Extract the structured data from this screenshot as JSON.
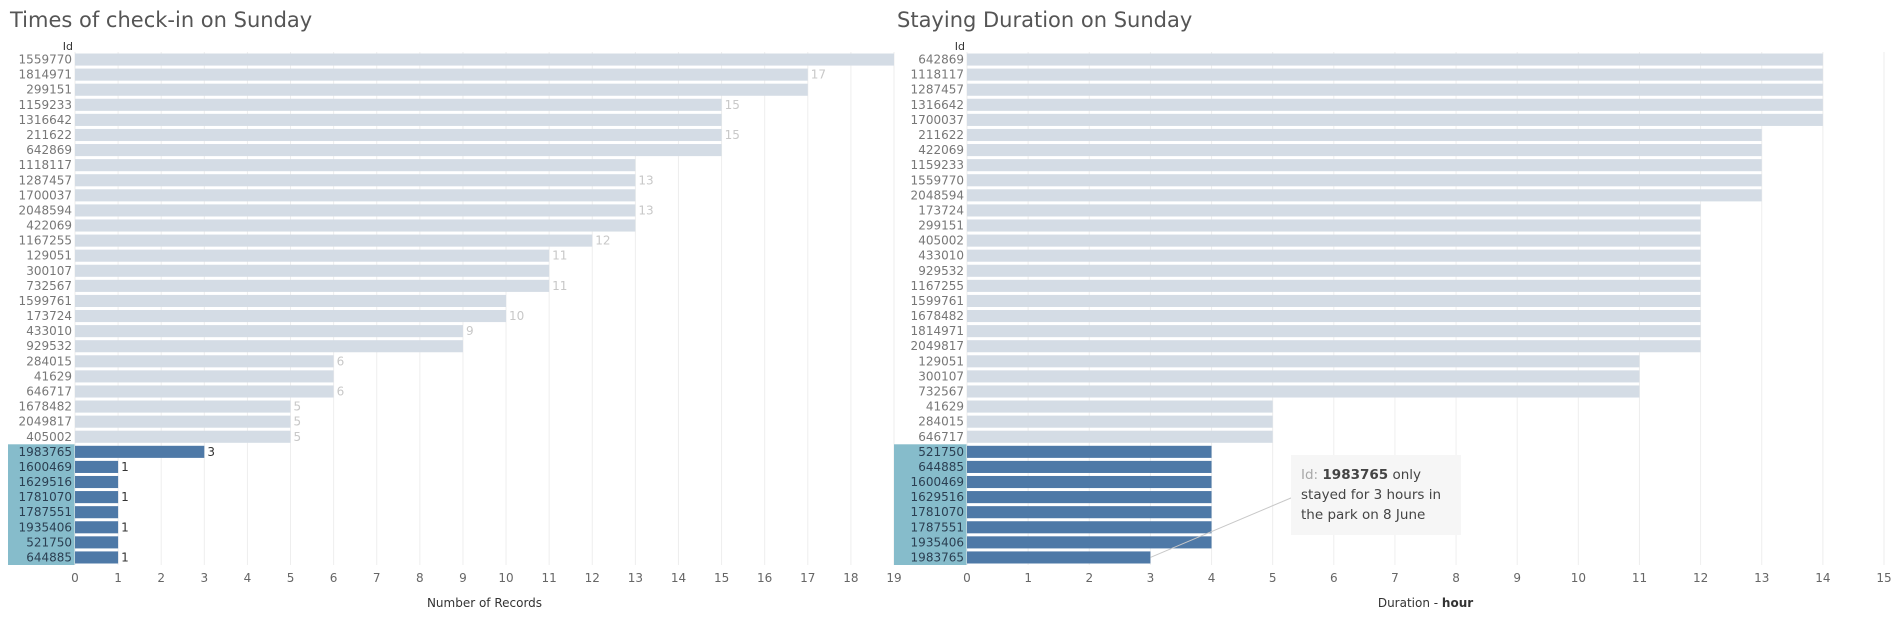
{
  "chart_data": [
    {
      "type": "bar",
      "orientation": "horizontal",
      "title": "Times of check-in on Sunday",
      "ylabel": "Id",
      "xlabel": "Number of Records",
      "xlim": [
        0,
        19
      ],
      "xticks": [
        "0",
        "1",
        "2",
        "3",
        "4",
        "5",
        "6",
        "7",
        "8",
        "9",
        "10",
        "11",
        "12",
        "13",
        "14",
        "15",
        "16",
        "17",
        "18",
        "19"
      ],
      "grid": true,
      "categories": [
        "1559770",
        "1814971",
        "299151",
        "1159233",
        "1316642",
        "211622",
        "642869",
        "1118117",
        "1287457",
        "1700037",
        "2048594",
        "422069",
        "1167255",
        "129051",
        "300107",
        "732567",
        "1599761",
        "173724",
        "433010",
        "929532",
        "284015",
        "41629",
        "646717",
        "1678482",
        "2049817",
        "405002",
        "1983765",
        "1600469",
        "1629516",
        "1781070",
        "1787551",
        "1935406",
        "521750",
        "644885"
      ],
      "values": [
        19,
        17,
        17,
        15,
        15,
        15,
        15,
        13,
        13,
        13,
        13,
        13,
        12,
        11,
        11,
        11,
        10,
        10,
        9,
        9,
        6,
        6,
        6,
        5,
        5,
        5,
        3,
        1,
        1,
        1,
        1,
        1,
        1,
        1
      ],
      "highlighted": [
        "1983765",
        "1600469",
        "1629516",
        "1781070",
        "1787551",
        "1935406",
        "521750",
        "644885"
      ],
      "data_labels": [
        {
          "category": "1814971",
          "text": "17"
        },
        {
          "category": "1159233",
          "text": "15"
        },
        {
          "category": "211622",
          "text": "15"
        },
        {
          "category": "1287457",
          "text": "13"
        },
        {
          "category": "2048594",
          "text": "13"
        },
        {
          "category": "1167255",
          "text": "12"
        },
        {
          "category": "129051",
          "text": "11"
        },
        {
          "category": "732567",
          "text": "11"
        },
        {
          "category": "173724",
          "text": "10"
        },
        {
          "category": "433010",
          "text": "9"
        },
        {
          "category": "284015",
          "text": "6"
        },
        {
          "category": "646717",
          "text": "6"
        },
        {
          "category": "1678482",
          "text": "5"
        },
        {
          "category": "2049817",
          "text": "5"
        },
        {
          "category": "405002",
          "text": "5"
        },
        {
          "category": "1983765",
          "text": "3"
        },
        {
          "category": "1600469",
          "text": "1"
        },
        {
          "category": "1781070",
          "text": "1"
        },
        {
          "category": "1935406",
          "text": "1"
        },
        {
          "category": "644885",
          "text": "1"
        }
      ]
    },
    {
      "type": "bar",
      "orientation": "horizontal",
      "title": "Staying Duration on Sunday",
      "ylabel": "Id",
      "xlabel": "Duration",
      "xlabel_unit": "hour",
      "xlim": [
        0,
        15
      ],
      "xticks": [
        "0",
        "1",
        "2",
        "3",
        "4",
        "5",
        "6",
        "7",
        "8",
        "9",
        "10",
        "11",
        "12",
        "13",
        "14",
        "15"
      ],
      "grid": true,
      "categories": [
        "642869",
        "1118117",
        "1287457",
        "1316642",
        "1700037",
        "211622",
        "422069",
        "1159233",
        "1559770",
        "2048594",
        "173724",
        "299151",
        "405002",
        "433010",
        "929532",
        "1167255",
        "1599761",
        "1678482",
        "1814971",
        "2049817",
        "129051",
        "300107",
        "732567",
        "41629",
        "284015",
        "646717",
        "521750",
        "644885",
        "1600469",
        "1629516",
        "1781070",
        "1787551",
        "1935406",
        "1983765"
      ],
      "values": [
        14,
        14,
        14,
        14,
        14,
        13,
        13,
        13,
        13,
        13,
        12,
        12,
        12,
        12,
        12,
        12,
        12,
        12,
        12,
        12,
        11,
        11,
        11,
        5,
        5,
        5,
        4,
        4,
        4,
        4,
        4,
        4,
        4,
        3
      ],
      "highlighted": [
        "521750",
        "644885",
        "1600469",
        "1629516",
        "1781070",
        "1787551",
        "1935406",
        "1983765"
      ],
      "annotation": {
        "label": "Id:",
        "id": "1983765",
        "line1": "only",
        "line2": "stayed for 3 hours in",
        "line3": "the park on 8 June",
        "target_category": "1983765"
      }
    }
  ],
  "colors": {
    "bar_default": "#d4dce5",
    "bar_highlight": "#4e79a7",
    "row_highlight": "#86bccb",
    "label_default": "#777777",
    "label_highlight": "#2b3f52",
    "data_label_faint": "#c8c8c8",
    "data_label_dark": "#333333",
    "gridline": "#eeeeee",
    "axis_text": "#666666"
  }
}
